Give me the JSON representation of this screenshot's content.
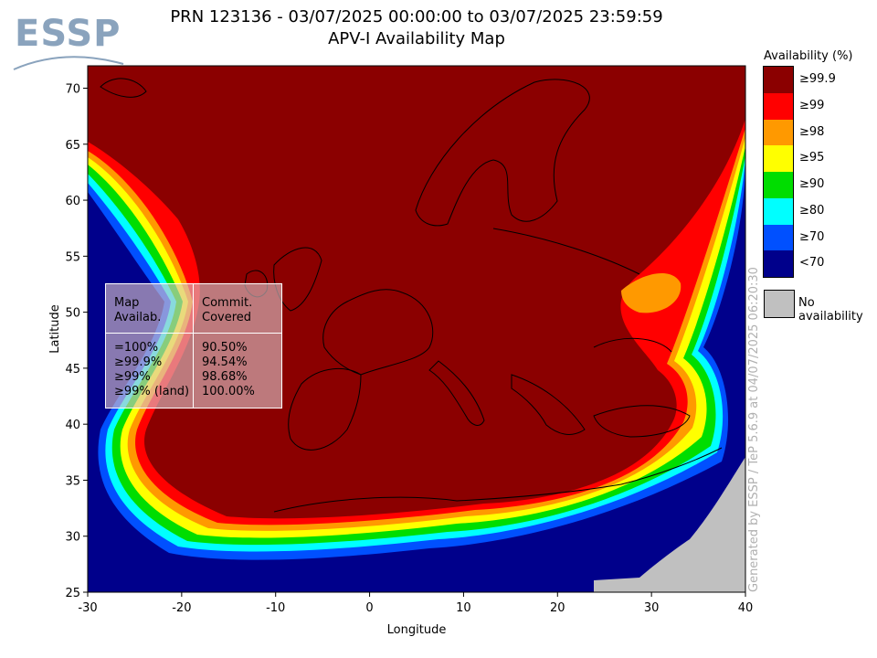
{
  "header": {
    "title_line1": "PRN 123136 - 03/07/2025 00:00:00 to 03/07/2025 23:59:59",
    "title_line2": "APV-I Availability Map"
  },
  "logo": {
    "text": "ESSP",
    "icon": "essp-logo-icon"
  },
  "map": {
    "x_axis": {
      "label": "Longitude",
      "range": [
        -30,
        40
      ],
      "ticks": [
        "-30",
        "-20",
        "-10",
        "0",
        "10",
        "20",
        "30",
        "40"
      ]
    },
    "y_axis": {
      "label": "Latitude",
      "range": [
        25,
        72
      ],
      "ticks": [
        "25",
        "30",
        "35",
        "40",
        "45",
        "50",
        "55",
        "60",
        "65",
        "70"
      ]
    }
  },
  "stats_box": {
    "header_col1": [
      "Map",
      "Availab."
    ],
    "header_col2": [
      "Commit.",
      "Covered"
    ],
    "rows": [
      {
        "label": "=100%",
        "value": "90.50%"
      },
      {
        "label": "≥99.9%",
        "value": "94.54%"
      },
      {
        "label": "≥99%",
        "value": "98.68%"
      },
      {
        "label": "≥99% (land)",
        "value": "100.00%"
      }
    ]
  },
  "legend": {
    "title": "Availability (%)",
    "items": [
      {
        "label": "≥99.9",
        "color": "#8b0000"
      },
      {
        "label": "≥99",
        "color": "#ff0000"
      },
      {
        "label": "≥98",
        "color": "#ff9900"
      },
      {
        "label": "≥95",
        "color": "#ffff00"
      },
      {
        "label": "≥90",
        "color": "#00dd00"
      },
      {
        "label": "≥80",
        "color": "#00ffff"
      },
      {
        "label": "≥70",
        "color": "#0050ff"
      },
      {
        "label": "<70",
        "color": "#00008b"
      }
    ],
    "no_availability": {
      "label": "No availability",
      "color": "#c0c0c0"
    }
  },
  "footer": {
    "generated": "Generated by ESSP / TeP 5.6.9 at 04/07/2025 06:20:30"
  }
}
